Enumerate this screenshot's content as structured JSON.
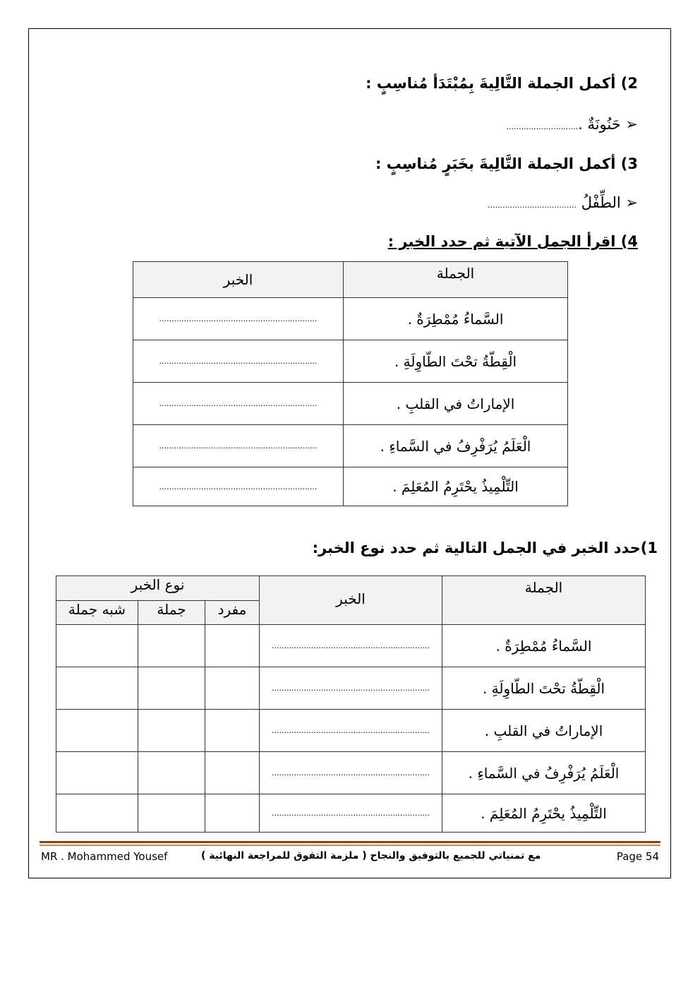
{
  "q2": {
    "title": "2) أكمل الجملة التَّالِيةَ بِمُبْتَدَأ  مُناسِبٍ :",
    "item": "حَنُونَةٌ .",
    "blank": "............................."
  },
  "q3": {
    "title": "3) أكمل الجملة التَّالِيةَ بخَبَرٍ مُناسِبٍ :",
    "item": "الطِّفْلُ",
    "blank": "...................................."
  },
  "q4": {
    "title": "4) اقرأ الجمل الآتية ثم حدد الخبر :",
    "headers": {
      "sentence": "الجملة",
      "predicate": "الخبر"
    },
    "rows": [
      "السَّماءُ مُمْطِرَةٌ .",
      "الْقِطّةُ تحْتَ الطّاوِلَةِ .",
      "الإماراتُ في القلبِ .",
      "الْعَلَمُ يُرَفْرِفُ في السَّماءِ .",
      "التِّلْمِيذُ يحْتَرِمُ المُعَلِمَ ."
    ],
    "blank": "................................................................"
  },
  "q1": {
    "title": "1)حدد الخبر في الجمل التالية ثم حدد نوع الخبر:",
    "headers": {
      "sentence": "الجملة",
      "predicate": "الخبر",
      "type": "نوع الخبر",
      "single": "مفرد",
      "clause": "جملة",
      "phrase": "شبه جملة"
    },
    "rows": [
      "السَّماءُ مُمْطِرَةٌ .",
      "الْقِطّةُ تحْتَ الطّاوِلَةِ .",
      "الإماراتُ في القلبِ .",
      "الْعَلَمُ يُرَفْرِفُ في السَّماءِ .",
      "التِّلْمِيذُ يحْتَرِمُ المُعَلِمَ ."
    ],
    "blank": "................................................................"
  },
  "footer": {
    "author": "MR . Mohammed Yousef",
    "note": "مع تمنياتي للجميع بالتوفيق والنجاح ( ملزمة التفوق للمراجعة النهائية )",
    "page": "Page 54"
  },
  "colors": {
    "rule": "#8b4513"
  }
}
